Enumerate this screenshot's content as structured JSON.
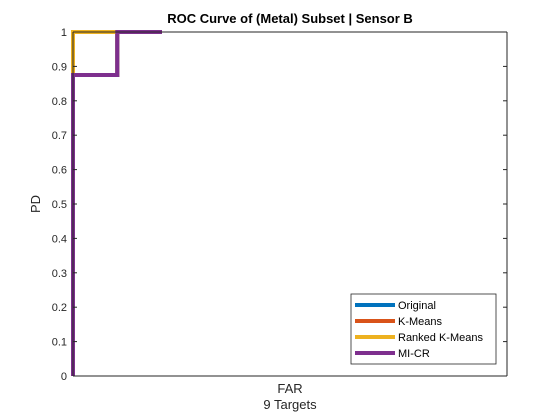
{
  "chart_data": {
    "type": "line",
    "title": "ROC Curve of (Metal) Subset | Sensor B",
    "xlabel": "FAR",
    "xlabel_sub": "9 Targets",
    "ylabel": "PD",
    "xlim": [
      0,
      1
    ],
    "ylim": [
      0,
      1
    ],
    "yticks": [
      0,
      0.1,
      0.2,
      0.3,
      0.4,
      0.5,
      0.6,
      0.7,
      0.8,
      0.9,
      1
    ],
    "ytick_labels": [
      "0",
      "0.1",
      "0.2",
      "0.3",
      "0.4",
      "0.5",
      "0.6",
      "0.7",
      "0.8",
      "0.9",
      "1"
    ],
    "grid": false,
    "legend_position": "bottom-right",
    "series": [
      {
        "name": "Original",
        "color": "#0072BD",
        "x": [
          0,
          0,
          0.102,
          0.102,
          0.205
        ],
        "y": [
          0,
          0.875,
          0.875,
          1,
          1
        ]
      },
      {
        "name": "K-Means",
        "color": "#D95319",
        "x": [
          0,
          0,
          0.102,
          0.102,
          0.205
        ],
        "y": [
          0,
          0.875,
          0.875,
          1,
          1
        ]
      },
      {
        "name": "Ranked K-Means",
        "color": "#EDB120",
        "x": [
          0,
          0,
          0.102
        ],
        "y": [
          0.875,
          1,
          1
        ]
      },
      {
        "name": "MI-CR",
        "color": "#7E2F8E",
        "x": [
          0,
          0,
          0.102,
          0.102,
          0.205
        ],
        "y": [
          0,
          0.875,
          0.875,
          1,
          1
        ]
      }
    ]
  }
}
